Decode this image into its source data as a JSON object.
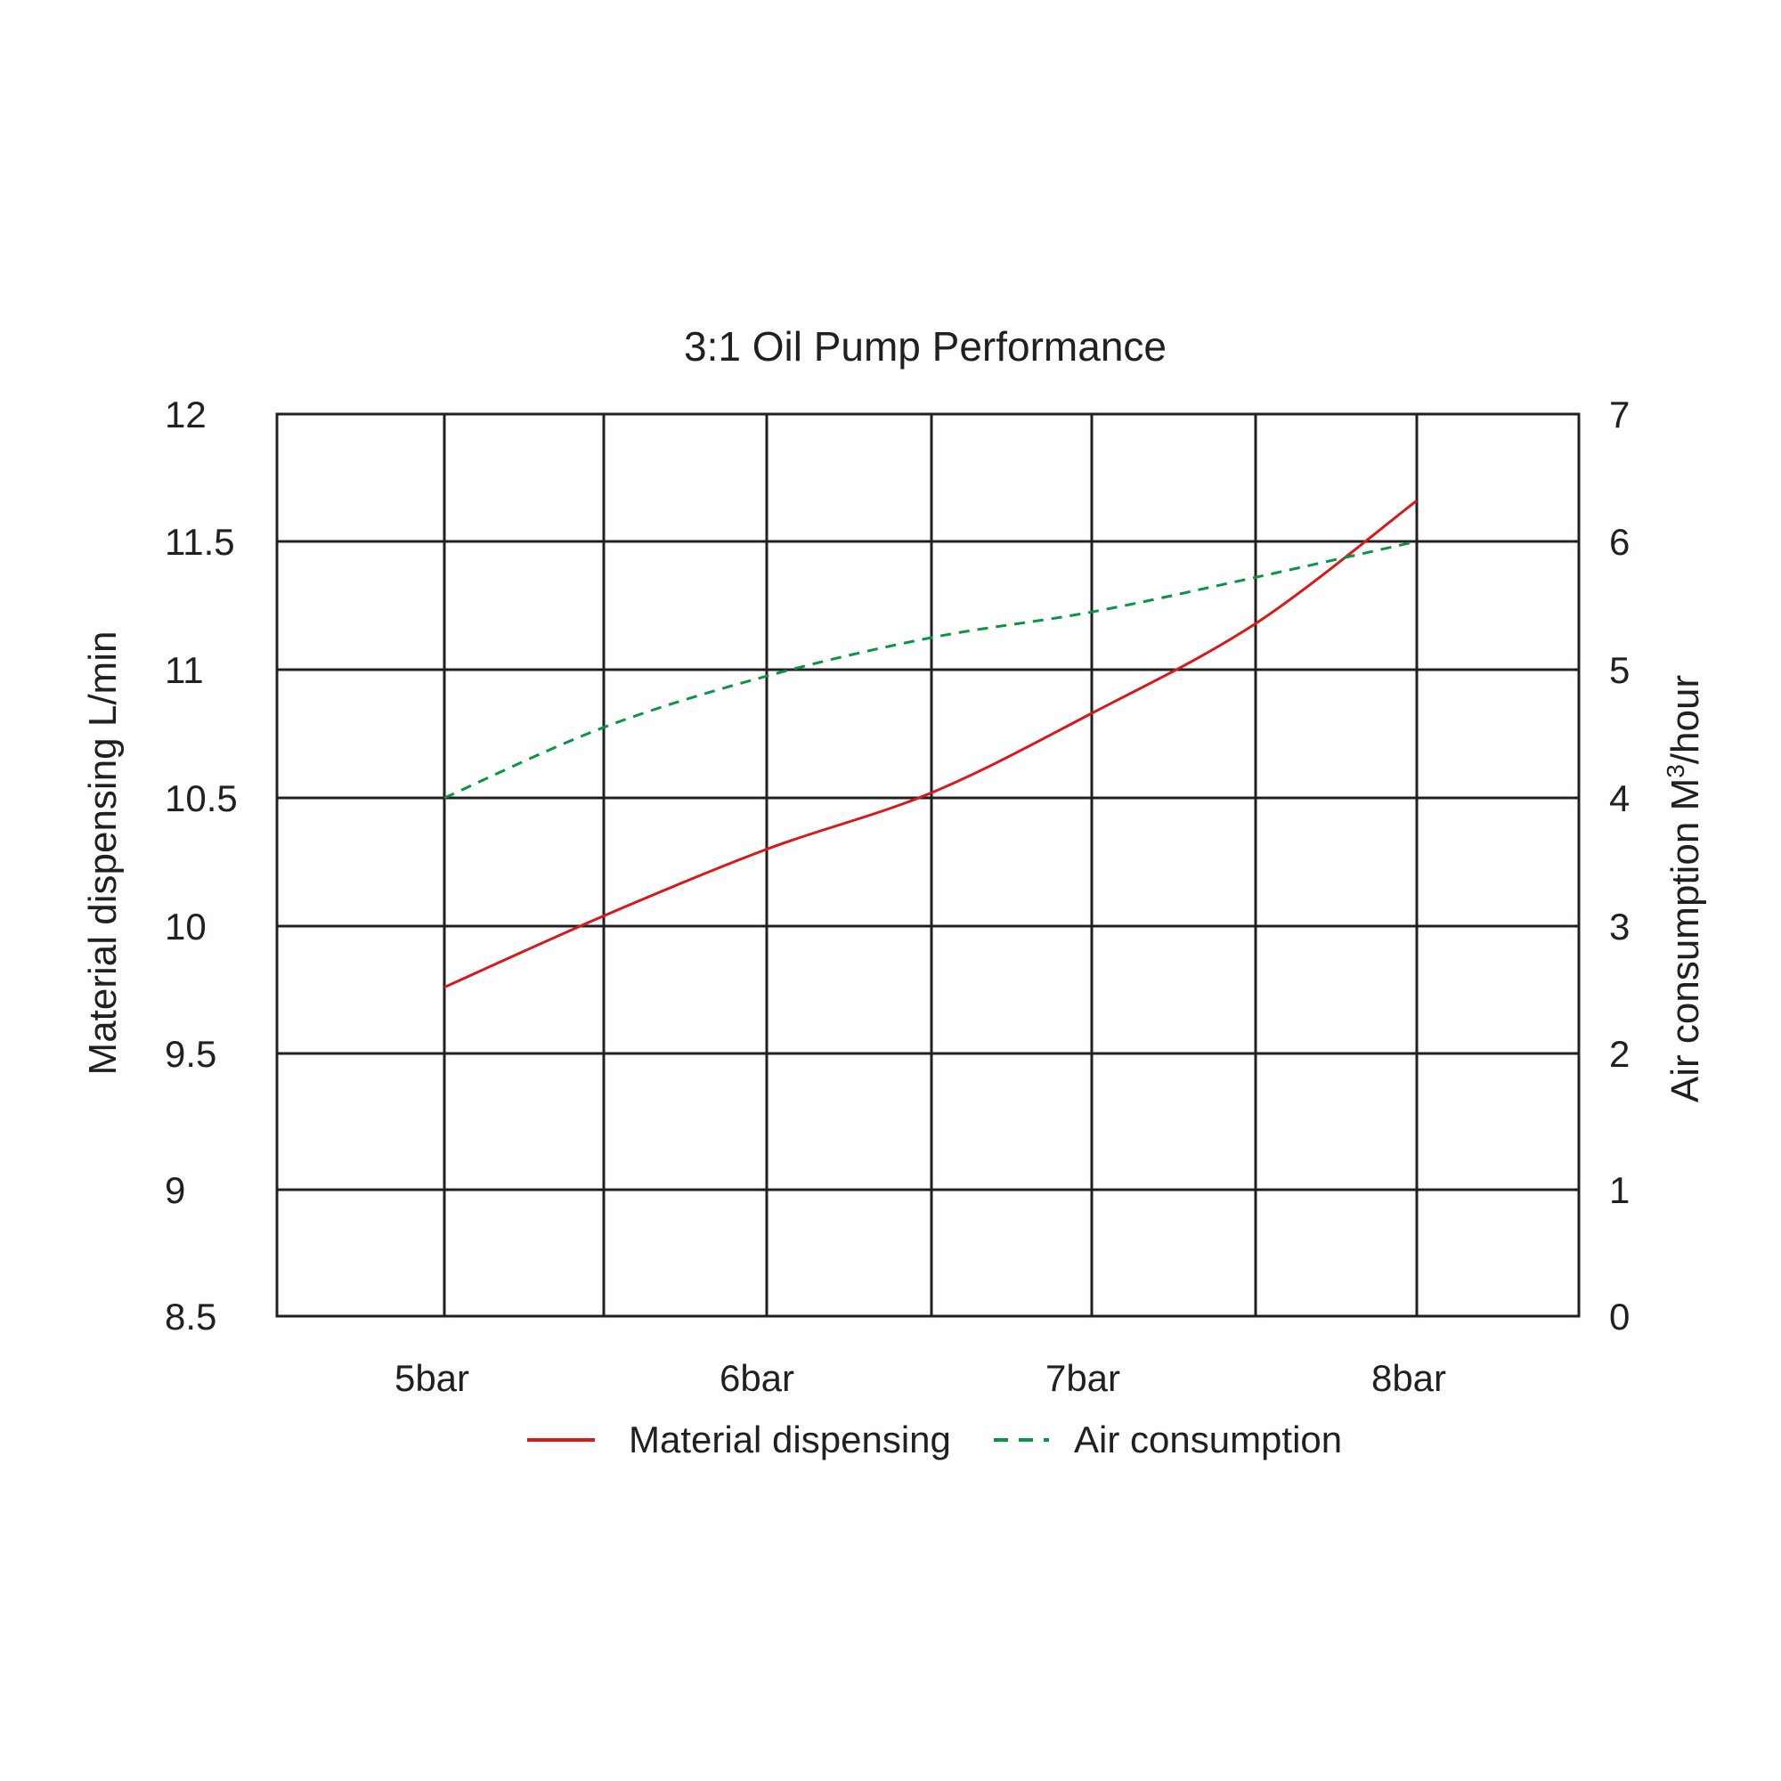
{
  "chart_data": {
    "type": "line",
    "title": "3:1 Oil Pump Performance",
    "categories": [
      "5bar",
      "6bar",
      "7bar",
      "8bar"
    ],
    "x_intermediate": [
      5,
      5.5,
      6,
      6.5,
      7,
      7.5,
      8
    ],
    "left_axis": {
      "label": "Material dispensing L/min",
      "ticks": [
        "12",
        "11.5",
        "11",
        "10.5",
        "10",
        "9.5",
        "9",
        "8.5"
      ],
      "ylim": [
        8.5,
        12
      ]
    },
    "right_axis": {
      "label_main": "Air consumption M",
      "label_sup": "3",
      "label_tail": "/hour",
      "ticks": [
        "7",
        "6",
        "5",
        "4",
        "3",
        "2",
        "1",
        "0"
      ],
      "ylim": [
        0,
        7
      ]
    },
    "grid": true,
    "legend_position": "bottom-center",
    "series": [
      {
        "name": "Material dispensing",
        "axis": "left",
        "color": "#d7191c",
        "style": "solid",
        "points": [
          [
            5,
            9.76
          ],
          [
            5.5,
            10.04
          ],
          [
            6,
            10.3
          ],
          [
            6.5,
            10.52
          ],
          [
            7,
            10.83
          ],
          [
            7.5,
            11.18
          ],
          [
            8,
            11.66
          ]
        ]
      },
      {
        "name": "Air consumption",
        "axis": "right",
        "color": "#0b9444",
        "style": "dashed",
        "points": [
          [
            5,
            4.0
          ],
          [
            5.5,
            4.55
          ],
          [
            6,
            4.95
          ],
          [
            6.5,
            5.25
          ],
          [
            7,
            5.45
          ],
          [
            7.5,
            5.72
          ],
          [
            8,
            6.0
          ]
        ]
      }
    ]
  }
}
